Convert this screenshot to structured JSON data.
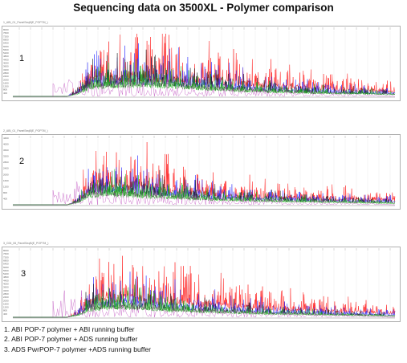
{
  "title": "Sequencing data on 3500XL - Polymer comparison",
  "colors": {
    "trace_a": "#ff1f1f",
    "trace_c": "#2020ff",
    "trace_g": "#161616",
    "trace_t": "#10b010",
    "trace_purple": "#b020b0",
    "frame": "#b0b0b0",
    "grid": "#dddddd"
  },
  "panels": [
    {
      "number": "1",
      "label": "1_ABI_01_PanelSeqB(E_POP7M_)",
      "y_ticks": [
        "8000",
        "7600",
        "7200",
        "6800",
        "6400",
        "6000",
        "5600",
        "5200",
        "4800",
        "4400",
        "4000",
        "3600",
        "3200",
        "2800",
        "2400",
        "2000",
        "1600",
        "1200",
        "800",
        "400"
      ]
    },
    {
      "number": "2",
      "label": "2_ABI_01_PanelSeqB(E_POP7M_)",
      "y_ticks": [
        "4400",
        "4000",
        "3600",
        "3200",
        "2800",
        "2400",
        "2000",
        "1600",
        "1200",
        "800",
        "400"
      ]
    },
    {
      "number": "3",
      "label": "3_C06_06_PanelSeqB(E_POP7M_)",
      "y_ticks": [
        "8000",
        "7600",
        "7200",
        "6800",
        "6400",
        "6000",
        "5600",
        "5200",
        "4800",
        "4400",
        "4000",
        "3600",
        "3200",
        "2800",
        "2400",
        "2000",
        "1600",
        "1200",
        "800",
        "400"
      ]
    }
  ],
  "legend": [
    "1. ABI POP-7 polymer + ABI running buffer",
    "2. ABI POP-7 polymer + ADS running buffer",
    "3. ADS PwrPOP-7 polymer +ADS running buffer"
  ],
  "chart_data": [
    {
      "type": "line",
      "title": "Sequencing data on 3500XL - Polymer comparison",
      "panel": "1",
      "series": [
        {
          "color": "#ff1f1f",
          "values": [
            0,
            0,
            0,
            0,
            0,
            0,
            20,
            72,
            78,
            82,
            86,
            88,
            90,
            88,
            85,
            82,
            80,
            78,
            74,
            70,
            66,
            60,
            56,
            52,
            48,
            45,
            42,
            40,
            38,
            35,
            32,
            30,
            28,
            26,
            24,
            22
          ]
        },
        {
          "color": "#2020ff",
          "values": [
            0,
            0,
            0,
            0,
            0,
            0,
            18,
            55,
            62,
            66,
            68,
            70,
            72,
            70,
            66,
            62,
            58,
            55,
            52,
            48,
            44,
            40,
            36,
            32,
            30,
            28,
            26,
            24,
            22,
            20,
            18,
            17,
            16,
            15,
            14,
            13
          ]
        },
        {
          "color": "#161616",
          "values": [
            0,
            0,
            0,
            0,
            0,
            0,
            15,
            45,
            50,
            54,
            56,
            58,
            60,
            58,
            55,
            50,
            46,
            42,
            38,
            34,
            30,
            28,
            26,
            24,
            22,
            20,
            18,
            17,
            16,
            15,
            14,
            13,
            12,
            11,
            10,
            9
          ]
        },
        {
          "color": "#10b010",
          "values": [
            0,
            0,
            0,
            0,
            0,
            0,
            12,
            38,
            44,
            48,
            50,
            52,
            54,
            52,
            48,
            45,
            42,
            38,
            34,
            30,
            28,
            26,
            24,
            22,
            20,
            18,
            17,
            16,
            15,
            14,
            13,
            12,
            11,
            10,
            9,
            8
          ]
        }
      ]
    },
    {
      "type": "line",
      "panel": "2",
      "series": [
        {
          "color": "#ff1f1f",
          "values": [
            0,
            0,
            0,
            0,
            0,
            0,
            18,
            80,
            86,
            90,
            88,
            86,
            82,
            78,
            72,
            66,
            60,
            55,
            50,
            46,
            42,
            40,
            38,
            36,
            34,
            32,
            30,
            28,
            27,
            26,
            25,
            24,
            23,
            22,
            21,
            20
          ]
        },
        {
          "color": "#2020ff",
          "values": [
            0,
            0,
            0,
            0,
            0,
            0,
            15,
            62,
            68,
            70,
            68,
            65,
            60,
            56,
            52,
            48,
            44,
            40,
            36,
            33,
            30,
            28,
            26,
            25,
            24,
            23,
            22,
            21,
            20,
            19,
            18,
            17,
            16,
            15,
            14,
            13
          ]
        },
        {
          "color": "#161616",
          "values": [
            0,
            0,
            0,
            0,
            0,
            0,
            12,
            48,
            52,
            55,
            54,
            52,
            48,
            44,
            40,
            36,
            33,
            30,
            28,
            26,
            24,
            22,
            21,
            20,
            19,
            18,
            17,
            16,
            15,
            14,
            13,
            12,
            11,
            10,
            9,
            8
          ]
        },
        {
          "color": "#10b010",
          "values": [
            0,
            0,
            0,
            0,
            0,
            0,
            10,
            40,
            45,
            48,
            46,
            44,
            40,
            37,
            34,
            31,
            28,
            26,
            24,
            22,
            20,
            19,
            18,
            17,
            16,
            15,
            14,
            13,
            12,
            11,
            10,
            9,
            8,
            7,
            6,
            5
          ]
        }
      ]
    },
    {
      "type": "line",
      "panel": "3",
      "series": [
        {
          "color": "#ff1f1f",
          "values": [
            0,
            0,
            0,
            0,
            0,
            0,
            16,
            70,
            80,
            86,
            90,
            88,
            84,
            80,
            76,
            72,
            68,
            64,
            60,
            56,
            52,
            48,
            44,
            42,
            40,
            38,
            36,
            34,
            32,
            30,
            28,
            26,
            24,
            22,
            20,
            18
          ]
        },
        {
          "color": "#2020ff",
          "values": [
            0,
            0,
            0,
            0,
            0,
            0,
            14,
            52,
            60,
            64,
            66,
            64,
            60,
            56,
            52,
            48,
            44,
            40,
            36,
            33,
            30,
            28,
            26,
            24,
            22,
            20,
            19,
            18,
            17,
            16,
            15,
            14,
            13,
            12,
            11,
            10
          ]
        },
        {
          "color": "#161616",
          "values": [
            0,
            0,
            0,
            0,
            0,
            0,
            10,
            40,
            46,
            50,
            52,
            50,
            46,
            42,
            38,
            35,
            32,
            30,
            28,
            26,
            24,
            22,
            20,
            18,
            17,
            16,
            15,
            14,
            13,
            12,
            11,
            10,
            9,
            8,
            7,
            6
          ]
        },
        {
          "color": "#10b010",
          "values": [
            0,
            0,
            0,
            0,
            0,
            0,
            8,
            34,
            40,
            44,
            46,
            44,
            40,
            36,
            33,
            30,
            28,
            26,
            24,
            22,
            20,
            18,
            17,
            16,
            15,
            14,
            13,
            12,
            11,
            10,
            9,
            8,
            7,
            6,
            5,
            4
          ]
        }
      ]
    }
  ]
}
